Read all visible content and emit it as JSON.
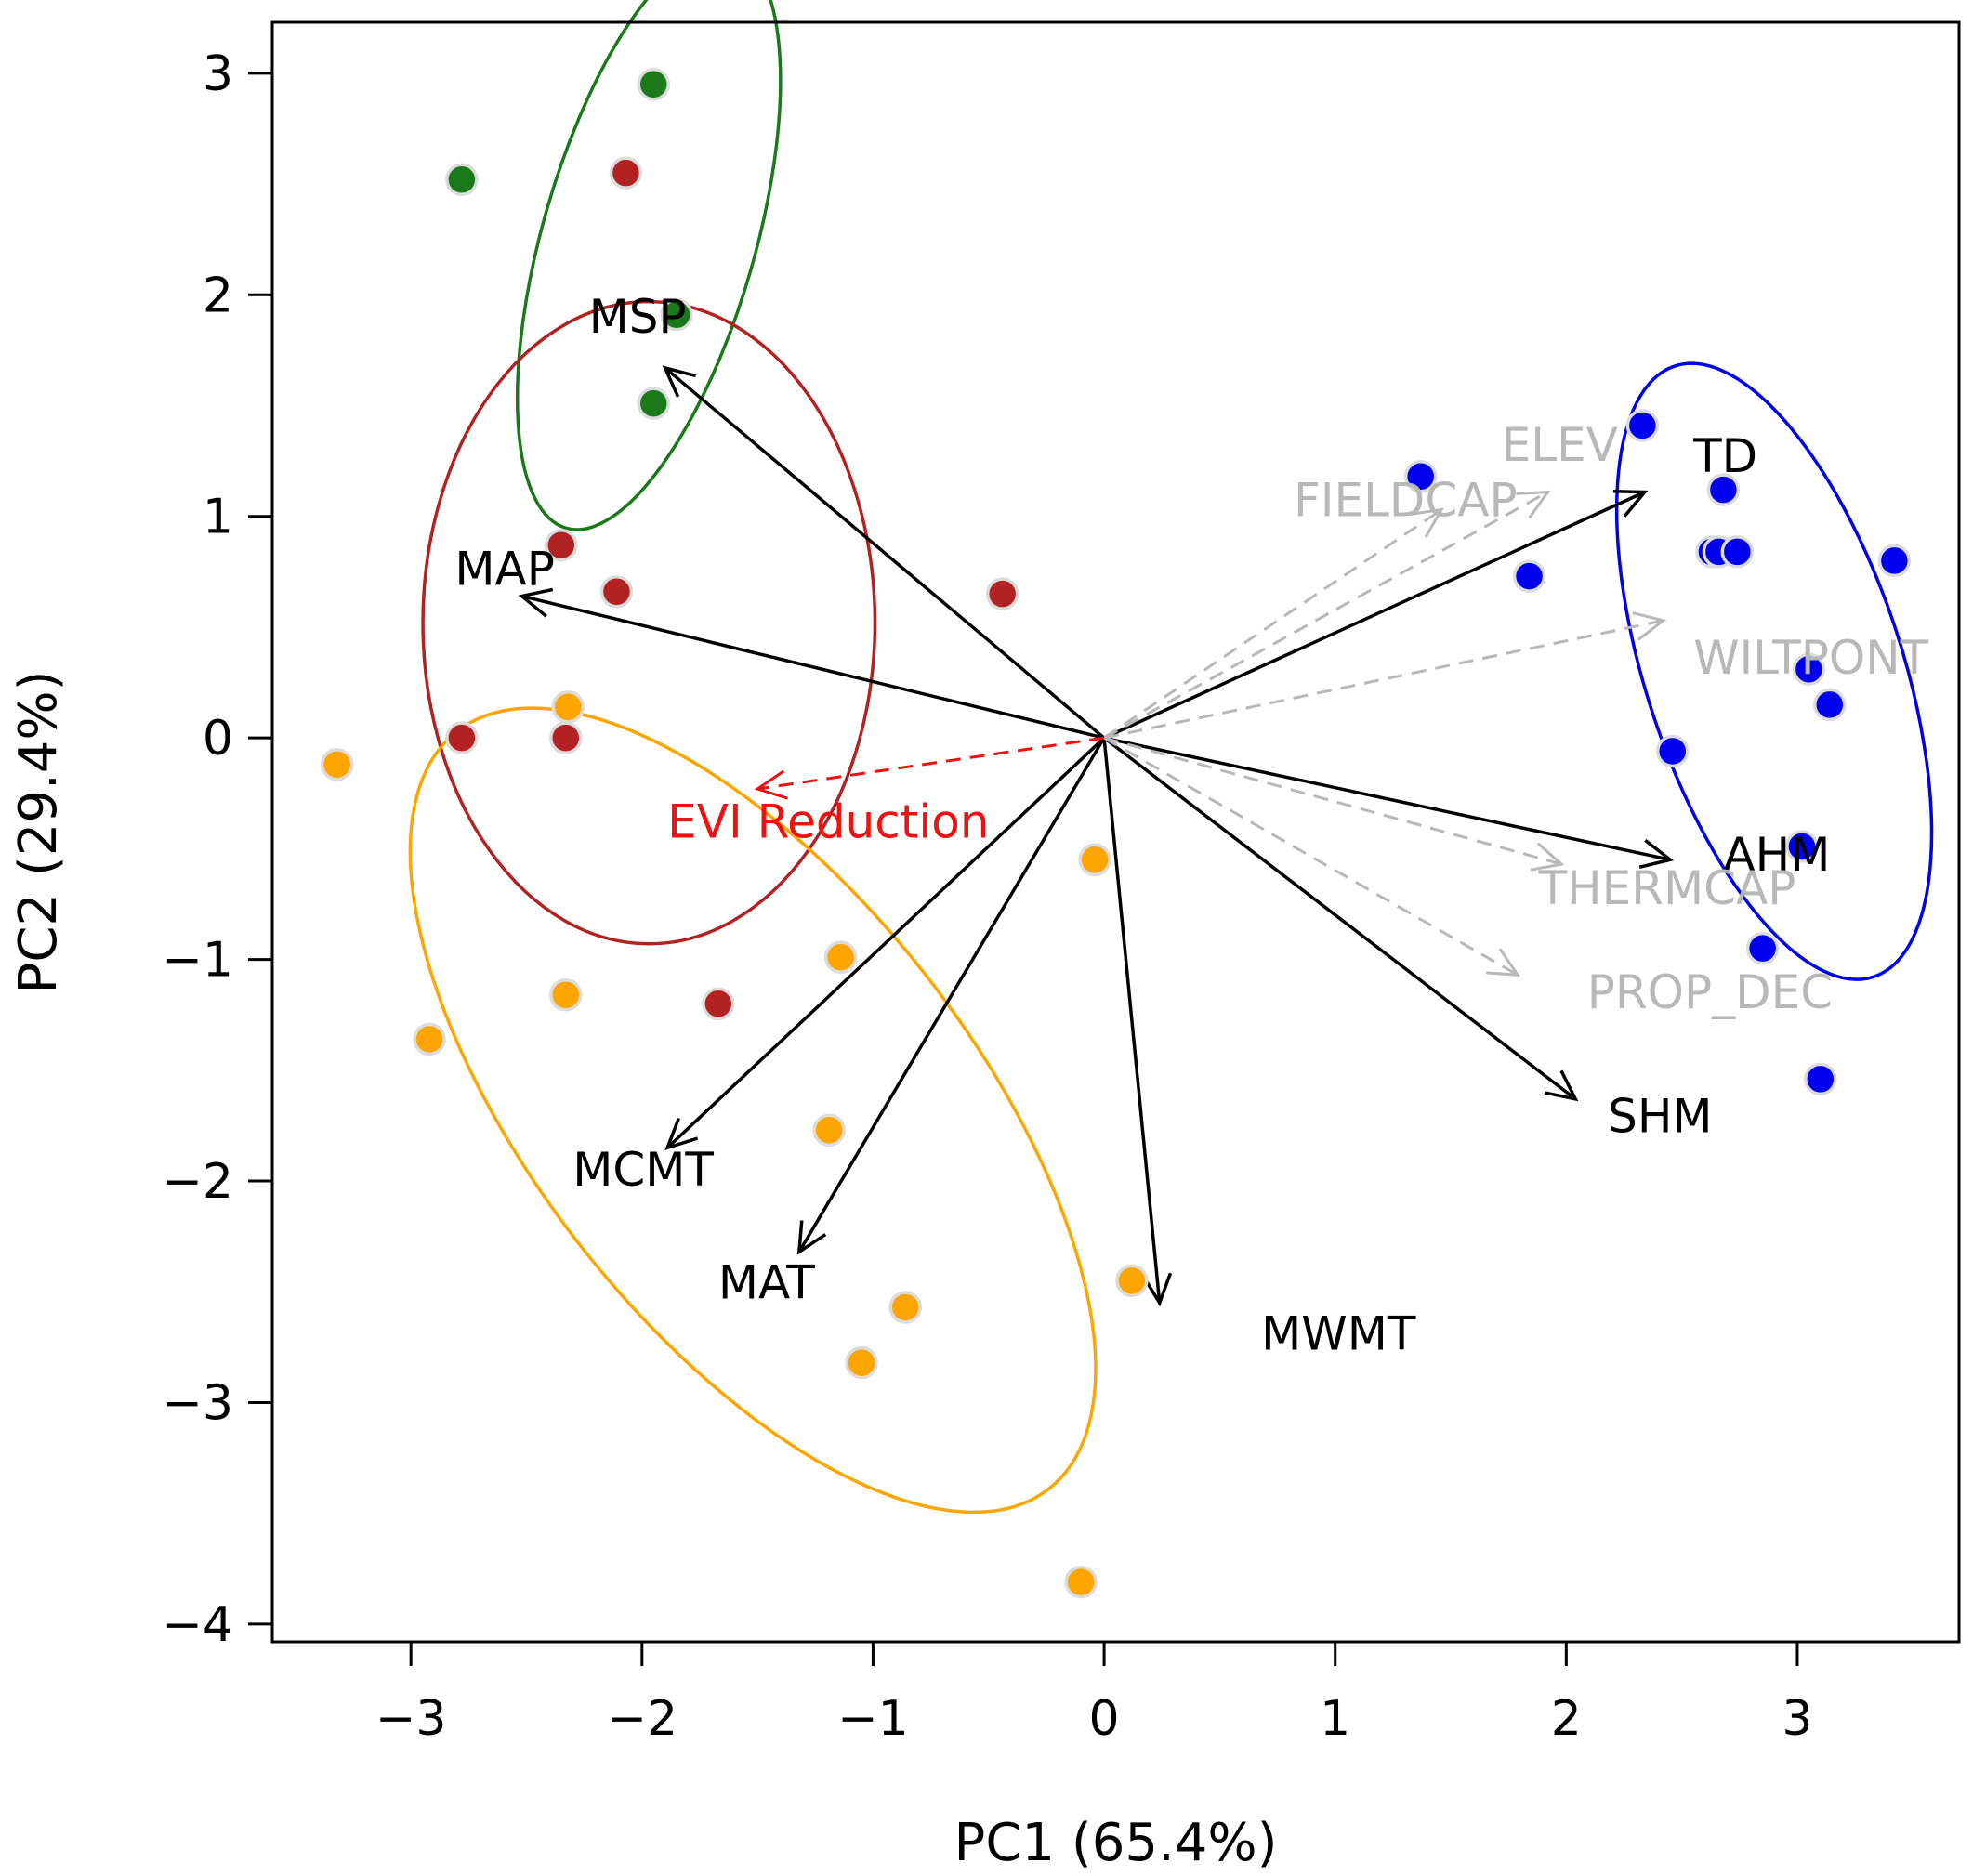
{
  "chart_data": {
    "type": "scatter",
    "title": "",
    "xlabel": "PC1 (65.4%)",
    "ylabel": "PC2 (29.4%)",
    "xlim": [
      -3.6,
      3.7
    ],
    "ylim": [
      -4.08,
      3.23
    ],
    "xticks": [
      -3,
      -2,
      -1,
      0,
      1,
      2,
      3
    ],
    "yticks": [
      -4,
      -3,
      -2,
      -1,
      0,
      1,
      2,
      3
    ],
    "xtick_labels": [
      "−3",
      "−2",
      "−1",
      "0",
      "1",
      "2",
      "3"
    ],
    "ytick_labels": [
      "−4",
      "−3",
      "−2",
      "−1",
      "0",
      "1",
      "2",
      "3"
    ],
    "grid": false,
    "series": [
      {
        "name": "green",
        "color": "#1a7a1a",
        "points": [
          [
            -1.95,
            2.95
          ],
          [
            -2.78,
            2.52
          ],
          [
            -1.85,
            1.91
          ],
          [
            -1.95,
            1.51
          ]
        ]
      },
      {
        "name": "red",
        "color": "#b22222",
        "points": [
          [
            -2.07,
            2.55
          ],
          [
            -2.35,
            0.87
          ],
          [
            -2.11,
            0.66
          ],
          [
            -0.44,
            0.65
          ],
          [
            -2.78,
            0.0
          ],
          [
            -2.33,
            0.0
          ],
          [
            -1.67,
            -1.2
          ]
        ]
      },
      {
        "name": "orange",
        "color": "#ffa500",
        "points": [
          [
            -3.32,
            -0.12
          ],
          [
            -2.32,
            0.14
          ],
          [
            -2.33,
            -1.16
          ],
          [
            -2.92,
            -1.36
          ],
          [
            -0.04,
            -0.55
          ],
          [
            -1.14,
            -0.99
          ],
          [
            -1.19,
            -1.77
          ],
          [
            -0.86,
            -2.57
          ],
          [
            -1.05,
            -2.82
          ],
          [
            0.12,
            -2.45
          ],
          [
            -0.1,
            -3.81
          ]
        ]
      },
      {
        "name": "blue",
        "color": "#0000ee",
        "points": [
          [
            2.33,
            1.41
          ],
          [
            1.37,
            1.18
          ],
          [
            2.68,
            1.12
          ],
          [
            2.63,
            0.84
          ],
          [
            2.66,
            0.84
          ],
          [
            2.74,
            0.84
          ],
          [
            1.84,
            0.73
          ],
          [
            3.42,
            0.8
          ],
          [
            3.05,
            0.31
          ],
          [
            3.14,
            0.15
          ],
          [
            2.46,
            -0.06
          ],
          [
            3.02,
            -0.49
          ],
          [
            2.85,
            -0.95
          ],
          [
            3.1,
            -1.54
          ]
        ]
      }
    ],
    "ellipses": [
      {
        "name": "green",
        "color": "#1a7a1a",
        "cx": -1.97,
        "cy": 2.25,
        "rx": 1.3,
        "ry": 0.48,
        "angle_deg": 74
      },
      {
        "name": "red",
        "color": "#b22222",
        "cx": -1.97,
        "cy": 0.52,
        "rx": 1.39,
        "ry": 1.02,
        "angle_deg": 90
      },
      {
        "name": "orange",
        "color": "#ffa500",
        "cx": -1.52,
        "cy": -1.68,
        "rx": 2.08,
        "ry": 0.99,
        "angle_deg": -52
      },
      {
        "name": "blue",
        "color": "#0000ee",
        "cx": 2.9,
        "cy": 0.3,
        "rx": 1.39,
        "ry": 0.58,
        "angle_deg": -72
      }
    ],
    "vectors": [
      {
        "label": "MSP",
        "x": -1.9,
        "y": 1.67,
        "style": "solid",
        "color": "#000000",
        "label_x": -2.23,
        "label_y": 1.83
      },
      {
        "label": "MAP",
        "x": -2.52,
        "y": 0.64,
        "style": "solid",
        "color": "#000000",
        "label_x": -2.81,
        "label_y": 0.69
      },
      {
        "label": "MCMT",
        "x": -1.89,
        "y": -1.85,
        "style": "solid",
        "color": "#000000",
        "label_x": -2.3,
        "label_y": -2.02
      },
      {
        "label": "MAT",
        "x": -1.32,
        "y": -2.32,
        "style": "solid",
        "color": "#000000",
        "label_x": -1.67,
        "label_y": -2.53
      },
      {
        "label": "MWMT",
        "x": 0.24,
        "y": -2.55,
        "style": "solid",
        "color": "#000000",
        "label_x": 0.68,
        "label_y": -2.76
      },
      {
        "label": "SHM",
        "x": 2.04,
        "y": -1.63,
        "style": "solid",
        "color": "#000000",
        "label_x": 2.18,
        "label_y": -1.78
      },
      {
        "label": "AHM",
        "x": 2.45,
        "y": -0.55,
        "style": "solid",
        "color": "#000000",
        "label_x": 2.68,
        "label_y": -0.6
      },
      {
        "label": "TD",
        "x": 2.34,
        "y": 1.11,
        "style": "solid",
        "color": "#000000",
        "label_x": 2.55,
        "label_y": 1.2
      },
      {
        "label": "ELEV",
        "x": 1.92,
        "y": 1.11,
        "style": "dashed",
        "color": "#b8b8b8",
        "label_x": 1.72,
        "label_y": 1.25
      },
      {
        "label": "FIELDCAP",
        "x": 1.46,
        "y": 1.03,
        "style": "dashed",
        "color": "#b8b8b8",
        "label_x": 0.82,
        "label_y": 1.0
      },
      {
        "label": "WILTPONT",
        "x": 2.42,
        "y": 0.53,
        "style": "dashed",
        "color": "#b8b8b8",
        "label_x": 2.55,
        "label_y": 0.29
      },
      {
        "label": "THERMCAP",
        "x": 1.98,
        "y": -0.57,
        "style": "dashed",
        "color": "#b8b8b8",
        "label_x": 1.88,
        "label_y": -0.75
      },
      {
        "label": "PROP_DEC",
        "x": 1.79,
        "y": -1.07,
        "style": "dashed",
        "color": "#b8b8b8",
        "label_x": 2.09,
        "label_y": -1.22
      },
      {
        "label": "EVI Reduction",
        "x": -1.5,
        "y": -0.23,
        "style": "dashed",
        "color": "#ee1111",
        "label_x": -1.89,
        "label_y": -0.45
      }
    ]
  }
}
